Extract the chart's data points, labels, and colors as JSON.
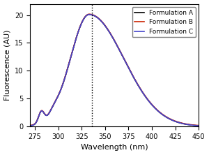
{
  "title": "",
  "xlabel": "Wavelength (nm)",
  "ylabel": "Fluorescence (AU)",
  "xlim": [
    270,
    450
  ],
  "ylim": [
    0,
    22
  ],
  "yticks": [
    0,
    5,
    10,
    15,
    20
  ],
  "xticks": [
    275,
    300,
    325,
    350,
    375,
    400,
    425,
    450
  ],
  "vline_x": 336,
  "peak_x": 333,
  "peak_y": 20.1,
  "legend_labels": [
    "Formulation A",
    "Formulation B",
    "Formulation C"
  ],
  "legend_colors": [
    "#000000",
    "#cc2200",
    "#4444cc"
  ],
  "background_color": "#ffffff",
  "line_width": 1.2
}
